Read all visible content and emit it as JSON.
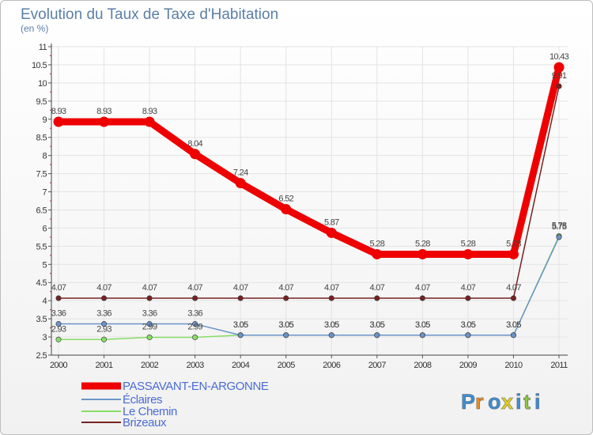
{
  "chart_data": {
    "type": "line",
    "title": "Evolution du Taux de Taxe d'Habitation",
    "subtitle": "(en %)",
    "xlabel": "",
    "ylabel": "",
    "ylim": [
      2.5,
      11
    ],
    "yticks": [
      "2.5",
      "3",
      "3.5",
      "4",
      "4.5",
      "5",
      "5.5",
      "6",
      "6.5",
      "7",
      "7.5",
      "8",
      "8.5",
      "9",
      "9.5",
      "10",
      "10.5",
      "11"
    ],
    "categories": [
      "2000",
      "2001",
      "2002",
      "2003",
      "2004",
      "2005",
      "2006",
      "2007",
      "2008",
      "2009",
      "2010",
      "2011"
    ],
    "series": [
      {
        "name": "PASSAVANT-EN-ARGONNE",
        "color": "#ee0000",
        "values": [
          8.93,
          8.93,
          8.93,
          8.04,
          7.24,
          6.52,
          5.87,
          5.28,
          5.28,
          5.28,
          5.28,
          10.43
        ],
        "labels": [
          "8.93",
          "8.93",
          "8.93",
          "8.04",
          "7.24",
          "6.52",
          "5.87",
          "5.28",
          "5.28",
          "5.28",
          "5.28",
          "10.43"
        ]
      },
      {
        "name": "Éclaires",
        "color": "#6a94c8",
        "values": [
          3.36,
          3.36,
          3.36,
          3.36,
          3.05,
          3.05,
          3.05,
          3.05,
          3.05,
          3.05,
          3.05,
          5.75
        ],
        "labels": [
          "3.36",
          "3.36",
          "3.36",
          "3.36",
          "3.05",
          "3.05",
          "3.05",
          "3.05",
          "3.05",
          "3.05",
          "3.05",
          "5.75"
        ]
      },
      {
        "name": "Le Chemin",
        "color": "#88dd66",
        "values": [
          2.93,
          2.93,
          2.99,
          2.99,
          3.05,
          3.05,
          3.05,
          3.05,
          3.05,
          3.05,
          3.05,
          5.78
        ],
        "labels": [
          "2.93",
          "2.93",
          "2.99",
          "2.99",
          "3.05",
          "3.05",
          "3.05",
          "3.05",
          "3.05",
          "3.05",
          "3.05",
          "5.78"
        ]
      },
      {
        "name": "Brizeaux",
        "color": "#772222",
        "values": [
          4.07,
          4.07,
          4.07,
          4.07,
          4.07,
          4.07,
          4.07,
          4.07,
          4.07,
          4.07,
          4.07,
          9.91
        ],
        "labels": [
          "4.07",
          "4.07",
          "4.07",
          "4.07",
          "4.07",
          "4.07",
          "4.07",
          "4.07",
          "4.07",
          "4.07",
          "4.07",
          "9.91"
        ]
      }
    ]
  },
  "logo": {
    "letters": [
      "P",
      "r",
      "o",
      "x",
      "i",
      "t",
      "i"
    ],
    "colors": [
      "#3a8fd6",
      "#f08a1c",
      "#3a8fd6",
      "#e6d21a",
      "#3a8fd6",
      "#8bc53f",
      "#3a8fd6"
    ]
  }
}
